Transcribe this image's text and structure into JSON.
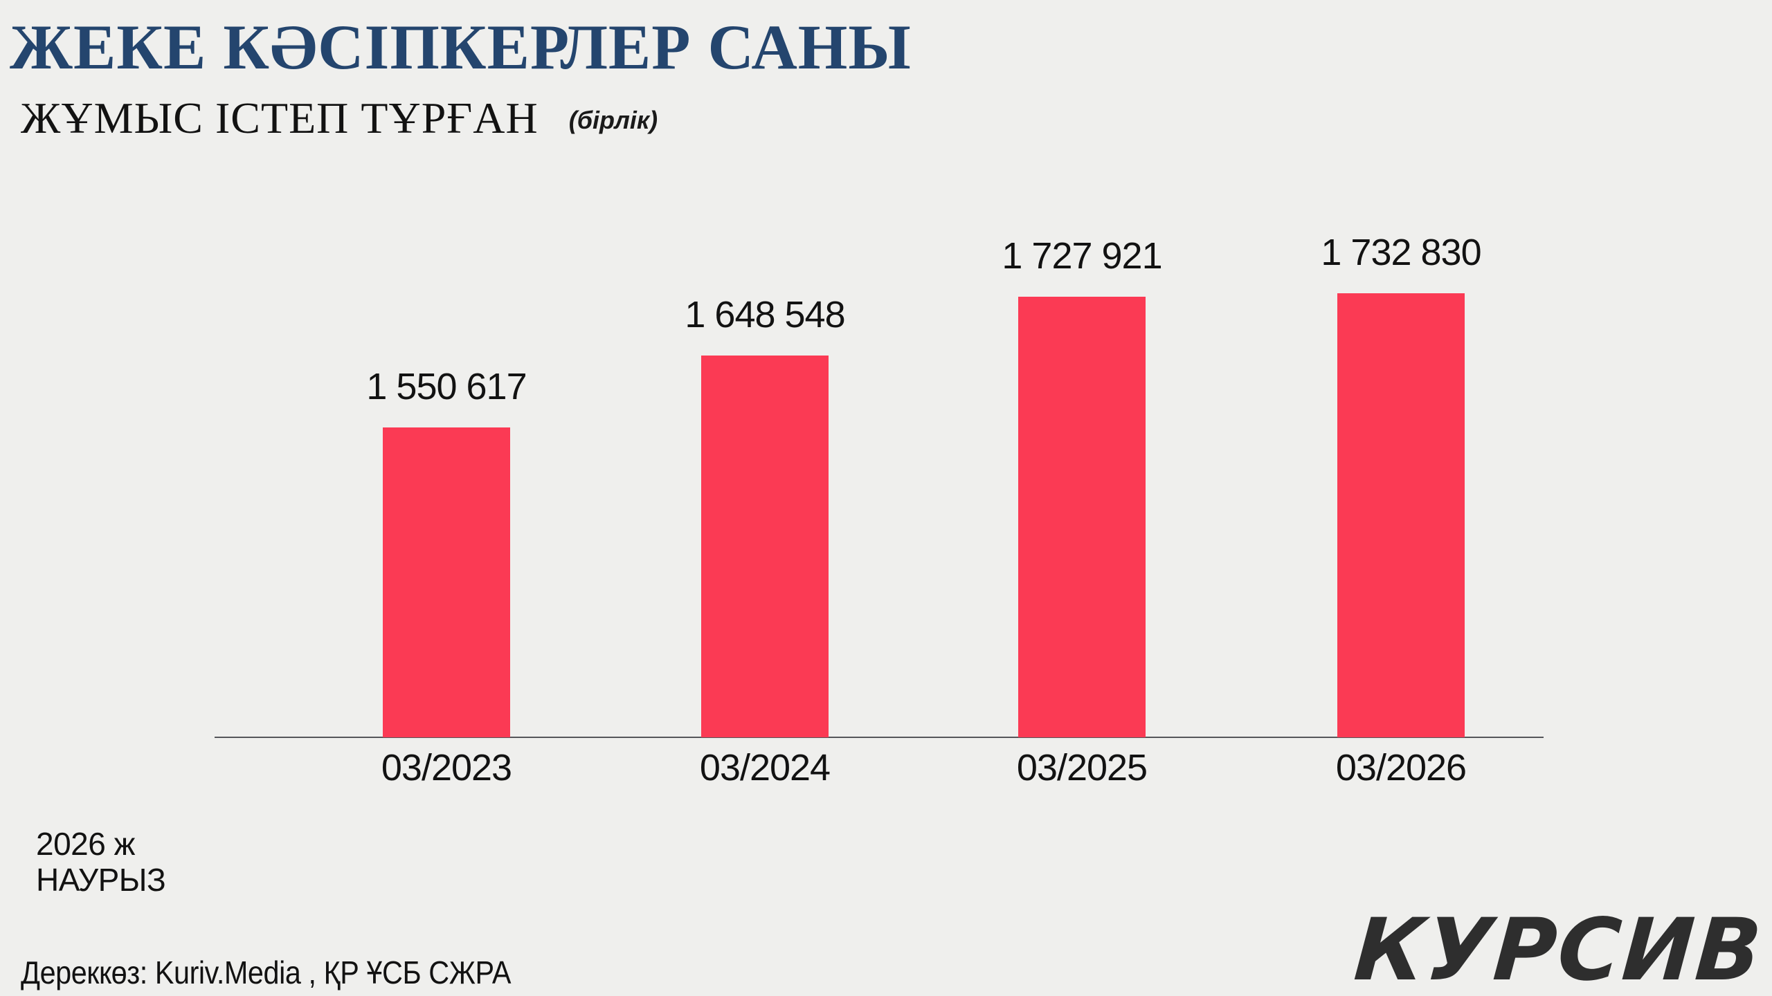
{
  "page": {
    "background": "#EFEFED"
  },
  "header": {
    "title": "ЖЕКЕ КӘСІПКЕРЛЕР САНЫ",
    "title_color": "#24456E",
    "subtitle": "ЖҰМЫС ІСТЕП ТҰРҒАН",
    "unit_note": "(бірлік)"
  },
  "chart_data": {
    "type": "bar",
    "title": "ЖЕКЕ КӘСІПКЕРЛЕР САНЫ — ЖҰМЫС ІСТЕП ТҰРҒАН (бірлік)",
    "categories": [
      "03/2023",
      "03/2024",
      "03/2025",
      "03/2026"
    ],
    "values": [
      1550617,
      1648548,
      1727921,
      1732830
    ],
    "value_labels": [
      "1 550 617",
      "1 648 548",
      "1 727 921",
      "1 732 830"
    ],
    "xlabel": "",
    "ylabel": "",
    "ylim": [
      1130000,
      1745000
    ],
    "grid": false,
    "legend": false,
    "bar_color": "#FB3A54",
    "axis_color": "#55565A"
  },
  "footer": {
    "period_line1": "2026 ж",
    "period_line2": "НАУРЫЗ",
    "source": "Дереккөз: Kuriv.Media , ҚР ҰСБ СЖРА",
    "brand": "КУРСИВ",
    "brand_color": "#2E2E2E"
  }
}
